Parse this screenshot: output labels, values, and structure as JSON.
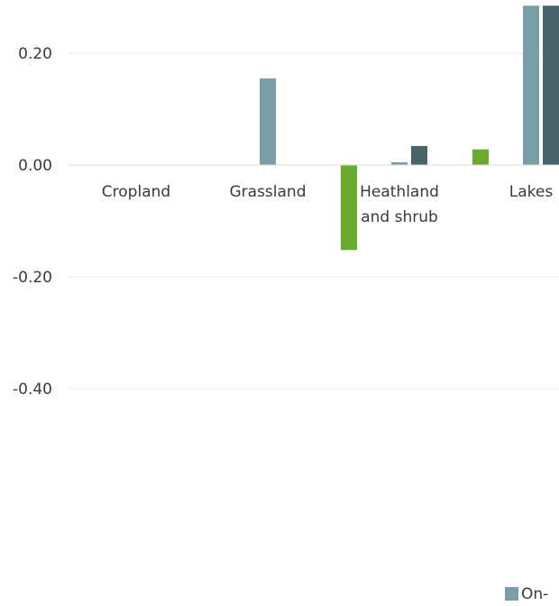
{
  "chart_data": {
    "type": "bar",
    "title": "",
    "xlabel": "",
    "ylabel": "",
    "categories": [
      "Cropland",
      "Grassland",
      "Heathland and shrub",
      "Lakes"
    ],
    "category_lines": [
      [
        "Cropland"
      ],
      [
        "Grassland"
      ],
      [
        "Heathland",
        "and shrub"
      ],
      [
        "Lakes"
      ]
    ],
    "ylim": [
      -0.4,
      0.2
    ],
    "ytick_values": [
      0.2,
      0.0,
      -0.2,
      -0.4
    ],
    "ytick_labels": [
      "0.20",
      "0.00",
      "-0.20",
      "-0.40"
    ],
    "grid": true,
    "legend_position": "bottom",
    "series": [
      {
        "name": "On-",
        "color": "#7a9ea6",
        "values": [
          0.0,
          0.155,
          0.005,
          0.285
        ]
      },
      {
        "color": "#48656c",
        "values": [
          0.0,
          0.0,
          0.034,
          0.285
        ]
      },
      {
        "color": "#6aaa2e",
        "values": [
          0.0,
          -0.152,
          0.028,
          0.0
        ]
      }
    ]
  }
}
